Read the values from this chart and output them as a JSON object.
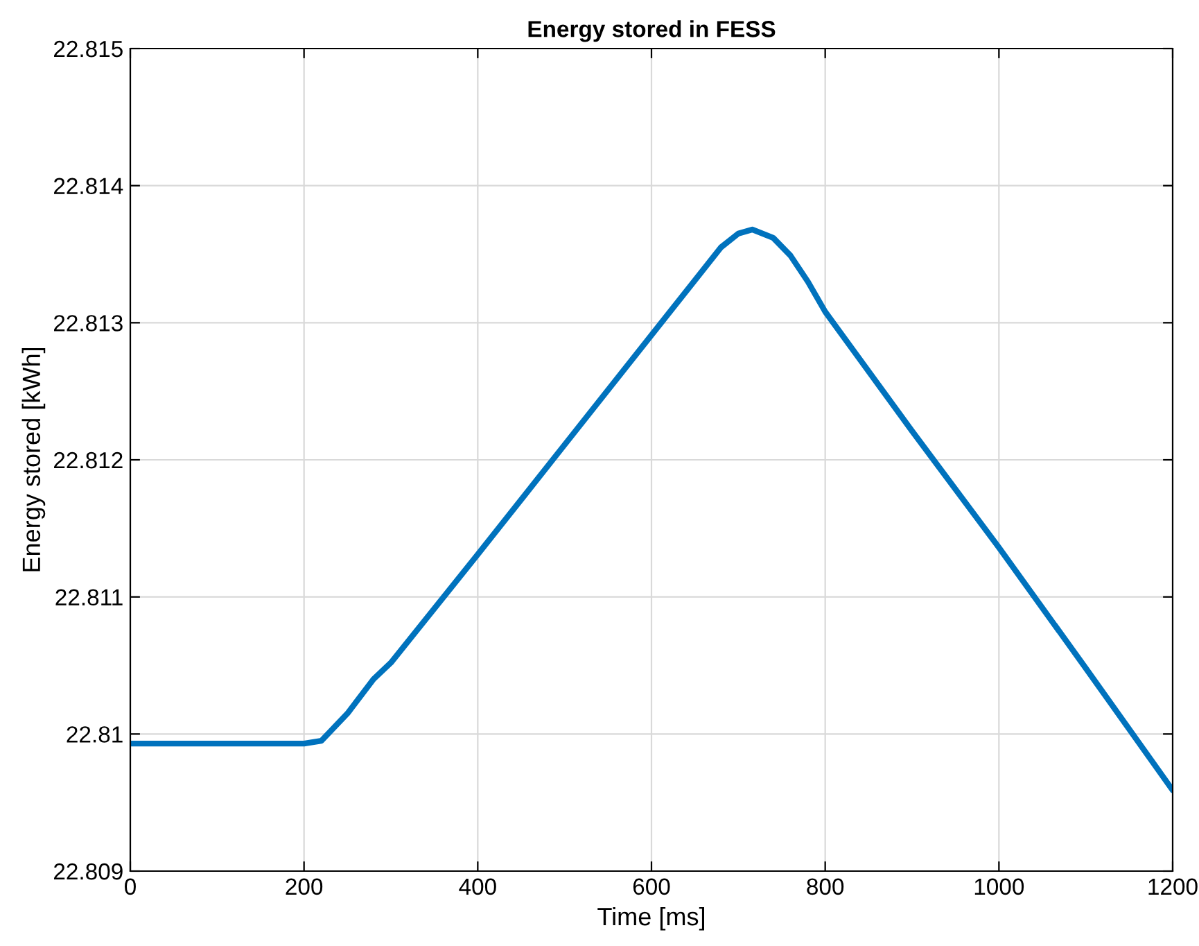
{
  "chart_data": {
    "type": "line",
    "title": "Energy stored in FESS",
    "xlabel": "Time [ms]",
    "ylabel": "Energy stored [kWh]",
    "x": [
      0,
      100,
      200,
      220,
      250,
      280,
      300,
      400,
      500,
      600,
      650,
      680,
      700,
      716,
      740,
      760,
      780,
      800,
      900,
      1000,
      1100,
      1200
    ],
    "series": [
      {
        "color": "#0072bd",
        "values": [
          22.80993,
          22.80993,
          22.80993,
          22.80995,
          22.81015,
          22.8104,
          22.81052,
          22.81131,
          22.81211,
          22.81291,
          22.81331,
          22.81355,
          22.81365,
          22.81368,
          22.81362,
          22.81349,
          22.8133,
          22.81308,
          22.81221,
          22.81136,
          22.81048,
          22.80959
        ]
      }
    ],
    "xlim": [
      0,
      1200
    ],
    "xticks": [
      0,
      200,
      400,
      600,
      800,
      1000,
      1200
    ],
    "ylim": [
      22.809,
      22.815
    ],
    "yticks": [
      22.809,
      22.81,
      22.811,
      22.812,
      22.813,
      22.814,
      22.815
    ],
    "grid": true,
    "marker": "none",
    "line_style": "solid"
  }
}
